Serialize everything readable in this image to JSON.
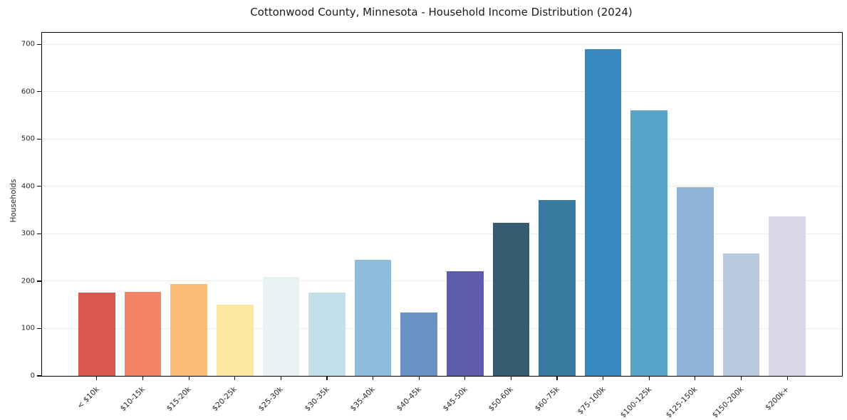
{
  "chart_data": {
    "type": "bar",
    "title": "Cottonwood County, Minnesota - Household Income Distribution (2024)",
    "ylabel": "Households",
    "categories": [
      "< $10k",
      "$10-15k",
      "$15-20k",
      "$20-25k",
      "$25-30k",
      "$30-35k",
      "$35-40k",
      "$40-45k",
      "$45-50k",
      "$50-60k",
      "$60-75k",
      "$75-100k",
      "$100-125k",
      "$125-150k",
      "$150-200k",
      "$200k+"
    ],
    "values": [
      176,
      178,
      194,
      151,
      209,
      176,
      245,
      134,
      221,
      323,
      372,
      690,
      561,
      399,
      259,
      337
    ],
    "bar_colors": [
      "#d8584e",
      "#f28467",
      "#fabd77",
      "#fde8a2",
      "#e8f2f5",
      "#c3e0ea",
      "#8fbcdb",
      "#6991c4",
      "#5d5bac",
      "#365a70",
      "#38799f",
      "#3789c0",
      "#58a4c8",
      "#8eb3d7",
      "#b9c9df",
      "#d8d8e8"
    ],
    "y_ticks": [
      0,
      100,
      200,
      300,
      400,
      500,
      600,
      700
    ],
    "ylim": [
      0,
      724.5
    ],
    "xlim_index": [
      -1.19,
      16.19
    ],
    "bar_width_index": 0.8,
    "grid": "horizontal",
    "grid_color": "#ebebeb",
    "frame_color": "#000000",
    "tick_color": "#000000",
    "text_color": "#262626",
    "legend": "none",
    "background_color": "#ffffff"
  }
}
